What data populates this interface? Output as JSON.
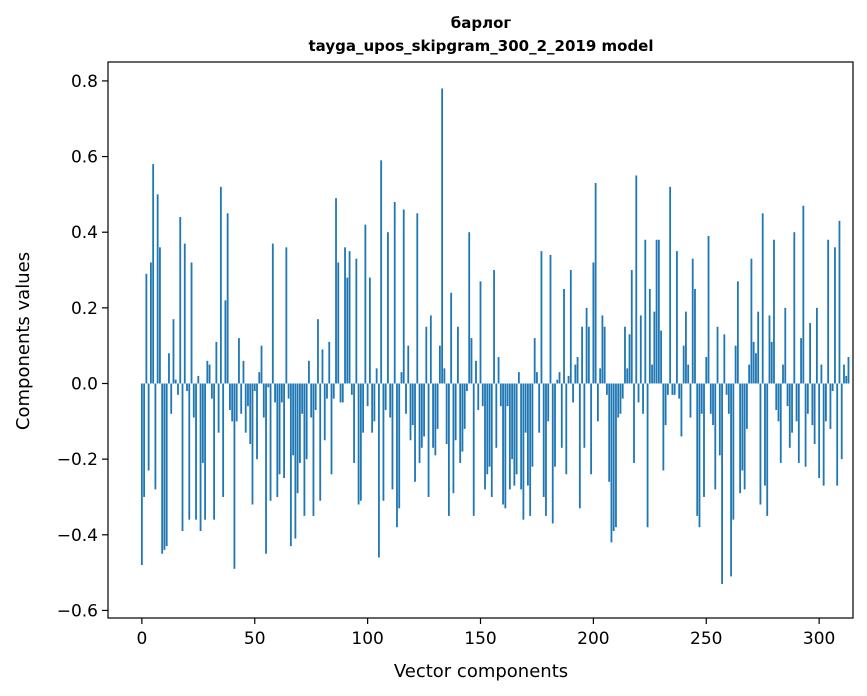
{
  "chart_data": {
    "type": "bar",
    "title_line1": "барлог",
    "title_line2": "tayga_upos_skipgram_300_2_2019 model",
    "xlabel": "Vector components",
    "ylabel": "Components values",
    "xlim": [
      -15,
      315
    ],
    "ylim": [
      -0.62,
      0.85
    ],
    "x_ticks": [
      0,
      50,
      100,
      150,
      200,
      250,
      300
    ],
    "y_ticks": [
      -0.6,
      -0.4,
      -0.2,
      0.0,
      0.2,
      0.4,
      0.6,
      0.8
    ],
    "y_tick_labels": [
      "−0.6",
      "−0.4",
      "−0.2",
      "0.0",
      "0.2",
      "0.4",
      "0.6",
      "0.8"
    ],
    "grid": false,
    "bar_color": "#1f77b4",
    "values": [
      -0.48,
      -0.3,
      0.29,
      -0.23,
      0.32,
      0.58,
      -0.28,
      0.5,
      0.36,
      -0.45,
      -0.44,
      -0.43,
      0.08,
      -0.08,
      0.17,
      0.01,
      -0.03,
      0.44,
      -0.39,
      0.37,
      -0.02,
      -0.36,
      0.32,
      -0.09,
      -0.36,
      0.02,
      -0.39,
      -0.21,
      -0.36,
      0.06,
      0.05,
      -0.04,
      -0.36,
      0.11,
      -0.13,
      0.52,
      -0.3,
      0.22,
      0.45,
      -0.07,
      -0.1,
      -0.49,
      -0.1,
      0.12,
      -0.08,
      0.06,
      -0.13,
      -0.06,
      -0.16,
      -0.32,
      -0.02,
      -0.2,
      0.03,
      0.1,
      -0.09,
      -0.45,
      -0.01,
      -0.31,
      0.37,
      -0.05,
      -0.3,
      -0.24,
      -0.05,
      -0.25,
      0.36,
      -0.04,
      -0.43,
      -0.19,
      -0.41,
      -0.29,
      -0.21,
      -0.08,
      -0.35,
      -0.2,
      0.06,
      -0.09,
      -0.35,
      -0.07,
      0.17,
      -0.31,
      0.09,
      -0.15,
      -0.04,
      0.11,
      -0.24,
      -0.04,
      0.49,
      0.32,
      -0.05,
      -0.05,
      0.36,
      0.28,
      0.35,
      -0.03,
      -0.21,
      0.33,
      -0.32,
      -0.31,
      -0.13,
      0.42,
      -0.06,
      0.28,
      -0.13,
      -0.1,
      0.04,
      -0.46,
      0.59,
      -0.31,
      -0.07,
      0.4,
      -0.09,
      -0.28,
      0.48,
      -0.38,
      -0.33,
      0.03,
      0.46,
      -0.08,
      0.1,
      -0.15,
      -0.11,
      -0.26,
      0.45,
      -0.21,
      -0.17,
      -0.14,
      0.15,
      -0.3,
      0.18,
      -0.17,
      -0.19,
      -0.12,
      0.1,
      0.78,
      0.04,
      -0.16,
      -0.35,
      0.24,
      -0.29,
      -0.15,
      0.15,
      -0.21,
      -0.18,
      -0.12,
      -0.02,
      0.4,
      0.12,
      -0.35,
      0.06,
      -0.07,
      0.27,
      -0.06,
      -0.28,
      -0.24,
      -0.22,
      -0.3,
      0.3,
      -0.17,
      0.07,
      -0.06,
      -0.32,
      -0.33,
      -0.06,
      -0.28,
      -0.2,
      -0.27,
      -0.24,
      0.03,
      -0.28,
      -0.36,
      -0.13,
      -0.27,
      -0.35,
      -0.22,
      0.12,
      0.03,
      -0.13,
      0.35,
      -0.3,
      -0.35,
      -0.1,
      0.34,
      -0.37,
      -0.22,
      0.01,
      0.03,
      -0.17,
      0.25,
      -0.24,
      0.02,
      0.3,
      -0.05,
      0.05,
      0.07,
      -0.33,
      0.15,
      -0.17,
      0.2,
      0.15,
      -0.24,
      0.32,
      0.53,
      -0.1,
      0.04,
      0.18,
      0.15,
      -0.03,
      -0.26,
      -0.42,
      -0.39,
      -0.38,
      -0.09,
      -0.08,
      -0.04,
      0.15,
      0.04,
      0.13,
      0.3,
      -0.21,
      0.55,
      -0.05,
      0.18,
      -0.08,
      0.38,
      -0.38,
      0.25,
      0.05,
      0.19,
      0.38,
      0.38,
      0.14,
      -0.23,
      -0.11,
      -0.03,
      0.52,
      -0.03,
      -0.03,
      0.35,
      -0.04,
      -0.14,
      0.1,
      0.19,
      0.05,
      -0.09,
      0.33,
      0.25,
      -0.35,
      -0.38,
      -0.08,
      -0.3,
      0.07,
      0.39,
      -0.08,
      -0.11,
      -0.28,
      0.15,
      -0.19,
      -0.53,
      0.13,
      -0.03,
      -0.08,
      -0.51,
      -0.36,
      0.1,
      0.27,
      -0.29,
      -0.23,
      -0.28,
      -0.12,
      0.05,
      0.33,
      0.11,
      0.08,
      0.19,
      -0.32,
      0.45,
      -0.27,
      -0.35,
      0.18,
      0.11,
      0.38,
      -0.07,
      -0.1,
      -0.21,
      0.05,
      0.2,
      -0.06,
      -0.17,
      -0.13,
      0.4,
      -0.1,
      -0.21,
      0.12,
      0.47,
      -0.22,
      -0.08,
      0.16,
      -0.11,
      -0.16,
      0.2,
      -0.25,
      0.05,
      -0.27,
      -0.1,
      0.38,
      -0.12,
      -0.02,
      0.36,
      -0.27,
      0.43,
      -0.2,
      0.05,
      0.02,
      0.07
    ]
  }
}
